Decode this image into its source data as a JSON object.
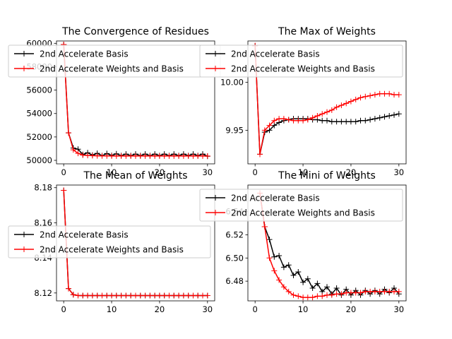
{
  "chart_data": [
    {
      "type": "line",
      "title": "The Convergence of Residues",
      "xlabel": "",
      "ylabel": "",
      "xlim": [
        -1.5,
        31.5
      ],
      "ylim": [
        49700,
        60200
      ],
      "xticks": [
        0,
        10,
        20,
        30
      ],
      "yticks": [
        50000,
        52000,
        54000,
        56000,
        58000,
        60000
      ],
      "x": [
        0,
        1,
        2,
        3,
        4,
        5,
        6,
        7,
        8,
        9,
        10,
        11,
        12,
        13,
        14,
        15,
        16,
        17,
        18,
        19,
        20,
        21,
        22,
        23,
        24,
        25,
        26,
        27,
        28,
        29,
        30
      ],
      "legend": {
        "position": "upper-left"
      },
      "series": [
        {
          "name": "2nd Accelerate Basis",
          "color": "#000000",
          "marker": "+",
          "values": [
            59900,
            52350,
            51050,
            50950,
            50500,
            50650,
            50450,
            50600,
            50400,
            50580,
            50420,
            50560,
            50400,
            50540,
            50400,
            50540,
            50400,
            50540,
            50400,
            50540,
            50400,
            50540,
            50400,
            50540,
            50400,
            50540,
            50400,
            50540,
            50400,
            50540,
            50350
          ]
        },
        {
          "name": "2nd Accelerate Weights and Basis",
          "color": "#ff0000",
          "marker": "+",
          "values": [
            59900,
            52350,
            50900,
            50600,
            50450,
            50420,
            50400,
            50390,
            50380,
            50380,
            50370,
            50370,
            50370,
            50370,
            50370,
            50370,
            50370,
            50370,
            50370,
            50370,
            50370,
            50370,
            50370,
            50370,
            50370,
            50370,
            50370,
            50370,
            50370,
            50370,
            50370
          ]
        }
      ]
    },
    {
      "type": "line",
      "title": "The Max of Weights",
      "xlabel": "",
      "ylabel": "",
      "xlim": [
        -1.5,
        31.5
      ],
      "ylim": [
        9.915,
        10.043
      ],
      "xticks": [
        0,
        10,
        20,
        30
      ],
      "yticks": [
        9.95,
        10.0
      ],
      "ytick_labels": [
        "9.95",
        "10.00"
      ],
      "x": [
        0,
        1,
        2,
        3,
        4,
        5,
        6,
        7,
        8,
        9,
        10,
        11,
        12,
        13,
        14,
        15,
        16,
        17,
        18,
        19,
        20,
        21,
        22,
        23,
        24,
        25,
        26,
        27,
        28,
        29,
        30
      ],
      "legend": {
        "position": "upper-left"
      },
      "series": [
        {
          "name": "2nd Accelerate Basis",
          "color": "#000000",
          "marker": "+",
          "values": [
            10.038,
            9.925,
            9.948,
            9.95,
            9.955,
            9.958,
            9.96,
            9.961,
            9.962,
            9.962,
            9.962,
            9.962,
            9.961,
            9.961,
            9.96,
            9.96,
            9.959,
            9.959,
            9.959,
            9.959,
            9.959,
            9.959,
            9.96,
            9.96,
            9.961,
            9.962,
            9.963,
            9.964,
            9.965,
            9.966,
            9.967
          ]
        },
        {
          "name": "2nd Accelerate Weights and Basis",
          "color": "#ff0000",
          "marker": "+",
          "values": [
            10.038,
            9.925,
            9.95,
            9.955,
            9.96,
            9.962,
            9.962,
            9.961,
            9.96,
            9.96,
            9.96,
            9.961,
            9.963,
            9.965,
            9.967,
            9.969,
            9.971,
            9.974,
            9.976,
            9.978,
            9.98,
            9.982,
            9.984,
            9.985,
            9.986,
            9.987,
            9.988,
            9.988,
            9.988,
            9.987,
            9.987
          ]
        }
      ]
    },
    {
      "type": "line",
      "title": "The Mean of Weights",
      "xlabel": "",
      "ylabel": "",
      "xlim": [
        -1.5,
        31.5
      ],
      "ylim": [
        8.1155,
        8.1815
      ],
      "xticks": [
        0,
        10,
        20,
        30
      ],
      "yticks": [
        8.12,
        8.14,
        8.16,
        8.18
      ],
      "ytick_labels": [
        "8.12",
        "8.14",
        "8.16",
        "8.18"
      ],
      "x": [
        0,
        1,
        2,
        3,
        4,
        5,
        6,
        7,
        8,
        9,
        10,
        11,
        12,
        13,
        14,
        15,
        16,
        17,
        18,
        19,
        20,
        21,
        22,
        23,
        24,
        25,
        26,
        27,
        28,
        29,
        30
      ],
      "legend": {
        "position": "center-left"
      },
      "series": [
        {
          "name": "2nd Accelerate Basis",
          "color": "#000000",
          "marker": "+",
          "values": [
            8.1785,
            8.1225,
            8.119,
            8.1185,
            8.1185,
            8.1185,
            8.1185,
            8.1185,
            8.1185,
            8.1185,
            8.1185,
            8.1185,
            8.1185,
            8.1185,
            8.1185,
            8.1185,
            8.1185,
            8.1185,
            8.1185,
            8.1185,
            8.1185,
            8.1185,
            8.1185,
            8.1185,
            8.1185,
            8.1185,
            8.1185,
            8.1185,
            8.1185,
            8.1185,
            8.1185
          ]
        },
        {
          "name": "2nd Accelerate Weights and Basis",
          "color": "#ff0000",
          "marker": "+",
          "values": [
            8.1785,
            8.1225,
            8.119,
            8.1185,
            8.1185,
            8.1185,
            8.1185,
            8.1185,
            8.1185,
            8.1185,
            8.1185,
            8.1185,
            8.1185,
            8.1185,
            8.1185,
            8.1185,
            8.1185,
            8.1185,
            8.1185,
            8.1185,
            8.1185,
            8.1185,
            8.1185,
            8.1185,
            8.1185,
            8.1185,
            8.1185,
            8.1185,
            8.1185,
            8.1185,
            8.1185
          ]
        }
      ]
    },
    {
      "type": "line",
      "title": "The Mini of Weights",
      "xlabel": "",
      "ylabel": "",
      "xlim": [
        -1.5,
        31.5
      ],
      "ylim": [
        6.463,
        6.563
      ],
      "xticks": [
        0,
        10,
        20,
        30
      ],
      "yticks": [
        6.48,
        6.5,
        6.52,
        6.54
      ],
      "ytick_labels": [
        "6.48",
        "6.50",
        "6.52",
        "6.54"
      ],
      "x": [
        1,
        2,
        3,
        4,
        5,
        6,
        7,
        8,
        9,
        10,
        11,
        12,
        13,
        14,
        15,
        16,
        17,
        18,
        19,
        20,
        21,
        22,
        23,
        24,
        25,
        26,
        27,
        28,
        29,
        30
      ],
      "legend": {
        "position": "upper-right"
      },
      "series": [
        {
          "name": "2nd Accelerate Basis",
          "color": "#000000",
          "marker": "+",
          "values": [
            6.556,
            6.527,
            6.516,
            6.501,
            6.502,
            6.492,
            6.494,
            6.485,
            6.488,
            6.479,
            6.482,
            6.474,
            6.478,
            6.471,
            6.475,
            6.469,
            6.474,
            6.468,
            6.473,
            6.468,
            6.472,
            6.468,
            6.472,
            6.469,
            6.472,
            6.469,
            6.473,
            6.47,
            6.474,
            6.469
          ]
        },
        {
          "name": "2nd Accelerate Weights and Basis",
          "color": "#ff0000",
          "marker": "+",
          "values": [
            6.556,
            6.527,
            6.5,
            6.489,
            6.481,
            6.475,
            6.471,
            6.468,
            6.467,
            6.466,
            6.466,
            6.466,
            6.467,
            6.467,
            6.468,
            6.468,
            6.469,
            6.469,
            6.47,
            6.47,
            6.47,
            6.47,
            6.471,
            6.471,
            6.471,
            6.471,
            6.471,
            6.471,
            6.471,
            6.471
          ]
        }
      ]
    }
  ]
}
